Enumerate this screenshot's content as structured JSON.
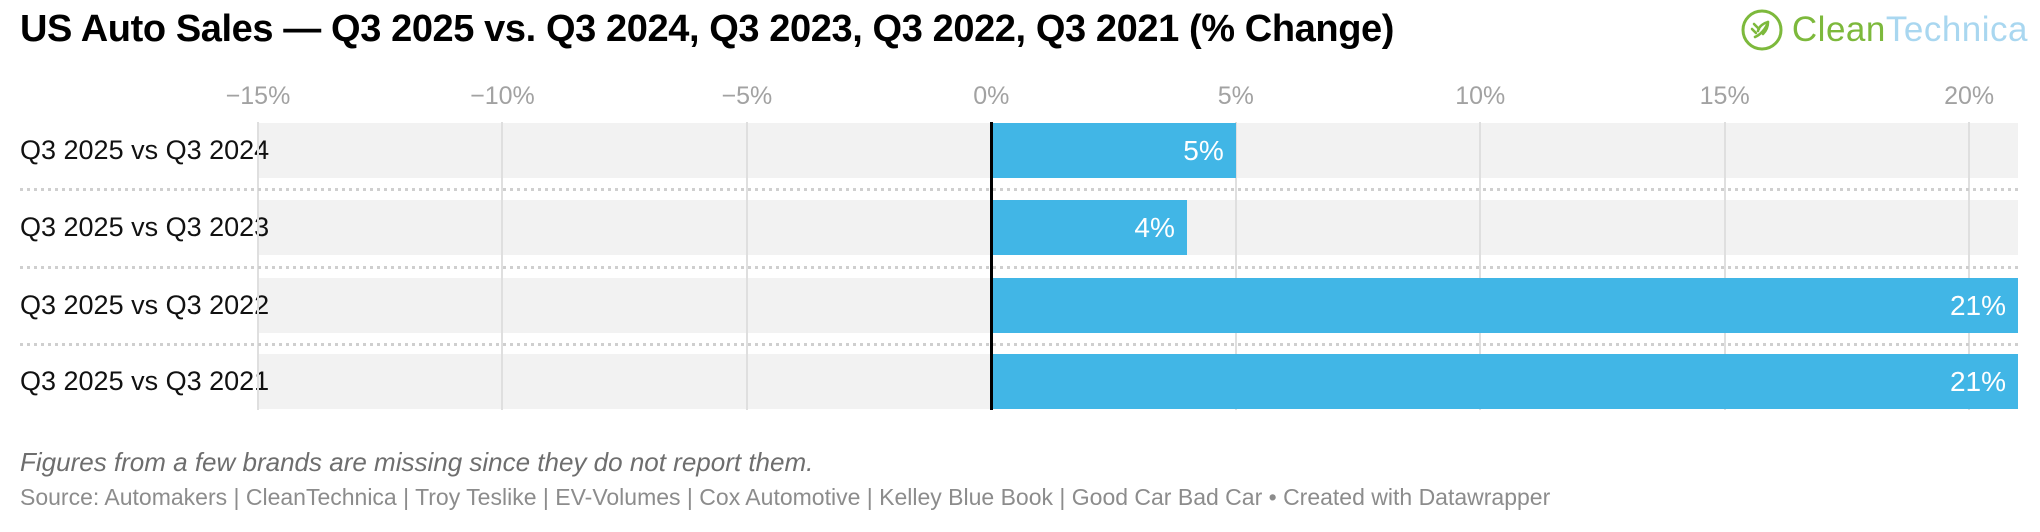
{
  "header": {
    "title": "US Auto Sales — Q3 2025 vs. Q3 2024, Q3 2023, Q3 2022, Q3 2021 (% Change)",
    "logo": {
      "part1": "Clean",
      "part2": "Technica",
      "icon": "cleantechnica-leaf-circle-icon",
      "green": "#7db93c",
      "blue": "#a9d7f0"
    }
  },
  "chart_data": {
    "type": "bar",
    "orientation": "horizontal",
    "title": "US Auto Sales — Q3 2025 vs. Q3 2024, Q3 2023, Q3 2022, Q3 2021 (% Change)",
    "categories": [
      "Q3 2025 vs Q3 2024",
      "Q3 2025 vs Q3 2023",
      "Q3 2025 vs Q3 2022",
      "Q3 2025 vs Q3 2021"
    ],
    "values": [
      5,
      4,
      21,
      21
    ],
    "value_labels": [
      "5%",
      "4%",
      "21%",
      "21%"
    ],
    "xlim": [
      -15,
      21
    ],
    "x_ticks": [
      -15,
      -10,
      -5,
      0,
      5,
      10,
      15,
      20
    ],
    "x_tick_labels": [
      "−15%",
      "−10%",
      "−5%",
      "0%",
      "5%",
      "10%",
      "15%",
      "20%"
    ],
    "grid": true,
    "legend": "none",
    "bar_color": "#41b6e6",
    "track_color": "#f2f2f2",
    "gridline_color": "#dfdfdf",
    "zero_line_color": "#000000",
    "value_label_color": "#ffffff"
  },
  "footer": {
    "note": "Figures from a few brands are missing since they do not report them.",
    "source": "Source: Automakers | CleanTechnica | Troy Teslike | EV-Volumes | Cox Automotive | Kelley Blue Book | Good Car Bad Car • Created with Datawrapper"
  }
}
